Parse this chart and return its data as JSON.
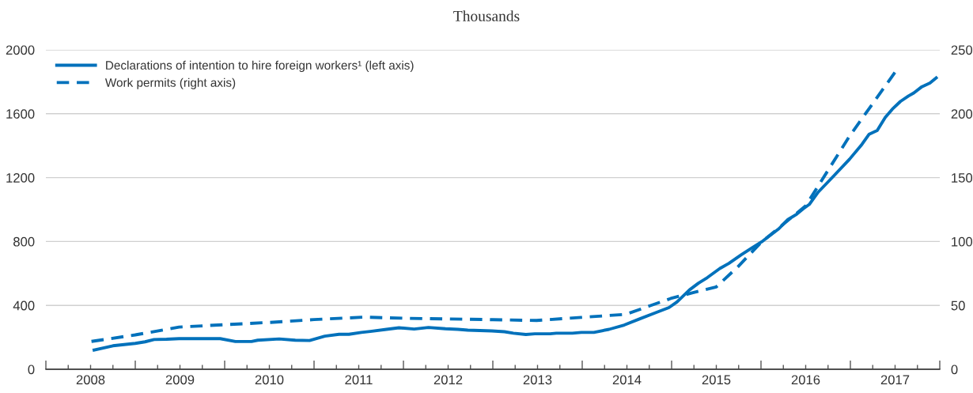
{
  "chart_data": {
    "type": "line",
    "subtitle": "Thousands",
    "xlim": [
      2008,
      2018
    ],
    "xticks": [
      {
        "value": 2008,
        "label": null
      },
      {
        "value": 2008.25,
        "label": null
      },
      {
        "value": 2008.5,
        "label": "2008"
      },
      {
        "value": 2008.75,
        "label": null
      },
      {
        "value": 2009,
        "label": null
      },
      {
        "value": 2009.25,
        "label": null
      },
      {
        "value": 2009.5,
        "label": "2009"
      },
      {
        "value": 2009.75,
        "label": null
      },
      {
        "value": 2010,
        "label": null
      },
      {
        "value": 2010.25,
        "label": null
      },
      {
        "value": 2010.5,
        "label": "2010"
      },
      {
        "value": 2010.75,
        "label": null
      },
      {
        "value": 2011,
        "label": null
      },
      {
        "value": 2011.25,
        "label": null
      },
      {
        "value": 2011.5,
        "label": "2011"
      },
      {
        "value": 2011.75,
        "label": null
      },
      {
        "value": 2012,
        "label": null
      },
      {
        "value": 2012.25,
        "label": null
      },
      {
        "value": 2012.5,
        "label": "2012"
      },
      {
        "value": 2012.75,
        "label": null
      },
      {
        "value": 2013,
        "label": null
      },
      {
        "value": 2013.25,
        "label": null
      },
      {
        "value": 2013.5,
        "label": "2013"
      },
      {
        "value": 2013.75,
        "label": null
      },
      {
        "value": 2014,
        "label": null
      },
      {
        "value": 2014.25,
        "label": null
      },
      {
        "value": 2014.5,
        "label": "2014"
      },
      {
        "value": 2014.75,
        "label": null
      },
      {
        "value": 2015,
        "label": null
      },
      {
        "value": 2015.25,
        "label": null
      },
      {
        "value": 2015.5,
        "label": "2015"
      },
      {
        "value": 2015.75,
        "label": null
      },
      {
        "value": 2016,
        "label": null
      },
      {
        "value": 2016.25,
        "label": null
      },
      {
        "value": 2016.5,
        "label": "2016"
      },
      {
        "value": 2016.75,
        "label": null
      },
      {
        "value": 2017,
        "label": null
      },
      {
        "value": 2017.25,
        "label": null
      },
      {
        "value": 2017.5,
        "label": "2017"
      },
      {
        "value": 2017.75,
        "label": null
      },
      {
        "value": 2018,
        "label": null
      }
    ],
    "ylim": [
      0,
      2000
    ],
    "yticks": [
      0,
      400,
      800,
      1200,
      1600,
      2000
    ],
    "y2lim": [
      0,
      250
    ],
    "y2ticks": [
      0,
      50,
      100,
      150,
      200,
      250
    ],
    "grid": "y",
    "legend": "top left",
    "series": [
      {
        "name": "Declarations of intention to hire foreign workers¹ (left axis)",
        "color": "#0071bb",
        "line_style": "solid",
        "x": [
          2008.54,
          2008.75,
          2009.0,
          2009.11,
          2009.21,
          2009.35,
          2009.49,
          2009.95,
          2010.12,
          2010.3,
          2010.37,
          2010.61,
          2010.79,
          2010.95,
          2011.12,
          2011.28,
          2011.39,
          2011.53,
          2011.63,
          2011.81,
          2011.95,
          2012.12,
          2012.28,
          2012.47,
          2012.61,
          2012.72,
          2012.99,
          2013.13,
          2013.23,
          2013.37,
          2013.47,
          2013.64,
          2013.71,
          2013.89,
          2013.99,
          2014.13,
          2014.3,
          2014.47,
          2014.64,
          2014.82,
          2014.97,
          2015.06,
          2015.2,
          2015.3,
          2015.4,
          2015.54,
          2015.64,
          2015.78,
          2015.89,
          2016.02,
          2016.2,
          2016.3,
          2016.4,
          2016.47,
          2016.54,
          2016.64,
          2016.82,
          2016.99,
          2017.13,
          2017.21,
          2017.3,
          2017.39,
          2017.47,
          2017.56,
          2017.65,
          2017.71,
          2017.8,
          2017.89,
          2017.96
        ],
        "values": [
          121,
          147,
          162,
          172,
          186,
          188,
          192,
          192,
          174,
          174,
          182,
          190,
          182,
          180,
          207,
          219,
          219,
          231,
          237,
          250,
          260,
          252,
          262,
          254,
          250,
          245,
          240,
          235,
          226,
          218,
          222,
          222,
          226,
          226,
          231,
          231,
          250,
          277,
          315,
          354,
          386,
          421,
          497,
          539,
          574,
          631,
          663,
          717,
          757,
          803,
          880,
          937,
          971,
          1004,
          1032,
          1109,
          1214,
          1315,
          1409,
          1472,
          1495,
          1577,
          1629,
          1677,
          1711,
          1730,
          1769,
          1792,
          1824
        ]
      },
      {
        "name": "Work permits (right axis)",
        "color": "#0071bb",
        "line_style": "dashed",
        "axis": "y2",
        "x": [
          2008.51,
          2009.0,
          2009.49,
          2010.02,
          2010.51,
          2011.0,
          2011.56,
          2012.02,
          2012.51,
          2013.0,
          2013.49,
          2013.99,
          2014.49,
          2014.75,
          2014.99,
          2015.23,
          2015.5,
          2015.74,
          2016.0,
          2016.5,
          2016.99,
          2017.51
        ],
        "values": [
          21.8,
          26.9,
          33.0,
          35.0,
          36.7,
          38.9,
          40.8,
          39.9,
          39.4,
          38.8,
          38.2,
          40.6,
          43.0,
          49.5,
          55.4,
          59.8,
          64.5,
          80.1,
          99.2,
          127.9,
          182.4,
          233.5
        ]
      }
    ]
  }
}
